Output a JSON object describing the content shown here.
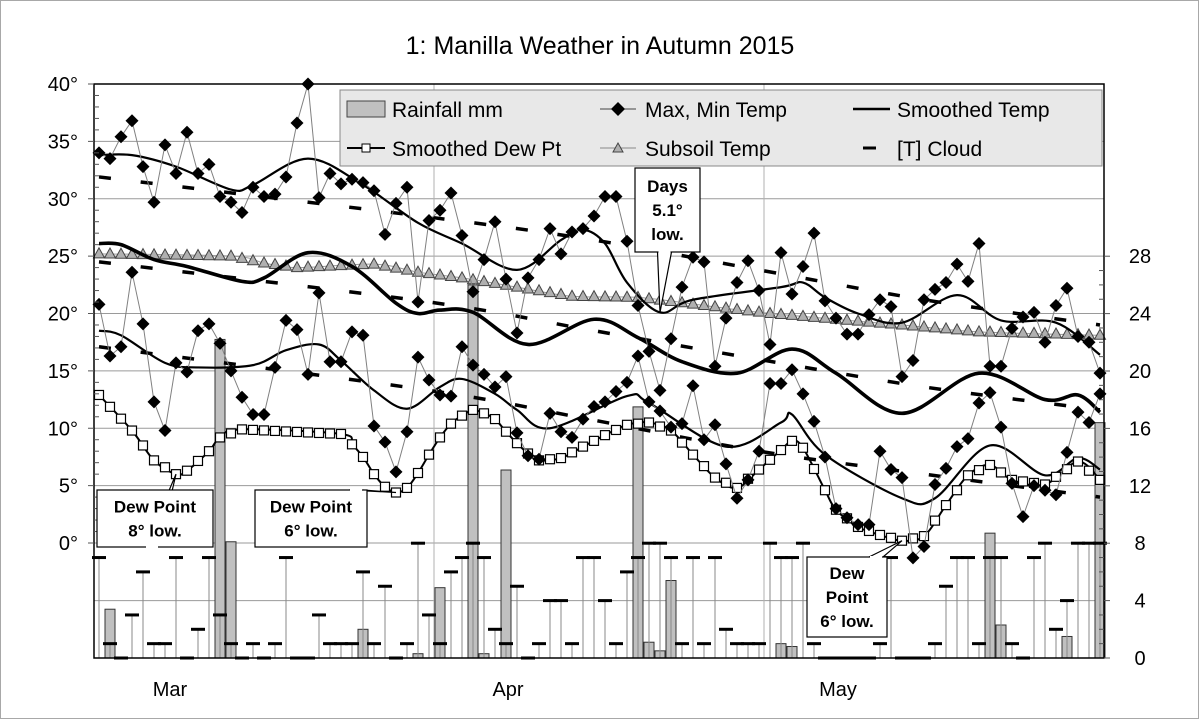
{
  "chart_data": {
    "type": "line",
    "title": "1: Manilla Weather in Autumn 2015",
    "start_date": "2015-03-01",
    "x_tick_labels": [
      "Mar",
      "Apr",
      "May"
    ],
    "left_axis": {
      "range": [
        -10,
        40
      ],
      "tick_labels": [
        "40°",
        "35°",
        "30°",
        "25°",
        "20°",
        "15°",
        "10°",
        "5°",
        "0°"
      ]
    },
    "right_axis": {
      "range": [
        0,
        36
      ],
      "tick_labels": [
        "28",
        "24",
        "20",
        "16",
        "12",
        "8",
        "4",
        "0"
      ]
    },
    "grid": true,
    "legend": {
      "placement": "top",
      "items": [
        "Rainfall mm",
        "Max, Min Temp",
        "Smoothed Temp",
        "Smoothed Dew Pt",
        "Subsoil Temp",
        "[T] Cloud"
      ]
    },
    "colors": {
      "rain_fill": "#c0c0c0",
      "subsoil_fill": "#b0b0b0",
      "lines": "#000000",
      "thin_lines": "#808080",
      "legend_bg": "#e8e8e8"
    },
    "max_temp": [
      34.0,
      33.5,
      35.4,
      36.8,
      32.8,
      29.7,
      34.7,
      32.2,
      35.8,
      32.2,
      33.0,
      30.2,
      29.7,
      28.8,
      31.0,
      30.2,
      30.4,
      31.9,
      36.6,
      40.0,
      30.1,
      32.2,
      31.3,
      31.7,
      31.4,
      30.7,
      26.9,
      29.6,
      31.0,
      21.0,
      28.1,
      29.0,
      30.5,
      26.8,
      21.9,
      24.7,
      28.0,
      23.0,
      18.3,
      23.1,
      24.7,
      27.4,
      25.2,
      27.1,
      27.4,
      28.5,
      30.2,
      30.2,
      26.3,
      20.7,
      16.7,
      13.3,
      17.8,
      22.3,
      24.9,
      24.5,
      15.4,
      19.6,
      22.7,
      24.6,
      22.0,
      17.3,
      25.3,
      21.7,
      24.1,
      27.0,
      21.1,
      19.6,
      18.2,
      18.2,
      19.9,
      21.2,
      20.6,
      14.5,
      15.9,
      21.2,
      22.1,
      22.7,
      24.3,
      22.8,
      26.1,
      15.4,
      15.4,
      18.7,
      19.7,
      20.1,
      17.5,
      20.7,
      22.2,
      18.0,
      17.5,
      14.8
    ],
    "min_temp": [
      20.8,
      16.3,
      17.1,
      23.6,
      19.1,
      12.3,
      9.8,
      15.7,
      14.9,
      18.5,
      19.1,
      17.4,
      15.0,
      12.7,
      11.2,
      11.2,
      15.3,
      19.4,
      18.6,
      14.7,
      21.8,
      15.8,
      15.8,
      18.4,
      18.1,
      10.2,
      8.8,
      6.2,
      9.7,
      16.2,
      14.2,
      12.9,
      12.8,
      17.1,
      15.5,
      14.7,
      13.6,
      14.5,
      9.6,
      7.6,
      7.3,
      11.3,
      9.7,
      9.2,
      10.8,
      11.9,
      12.3,
      13.2,
      14.0,
      16.3,
      12.3,
      11.5,
      10.1,
      10.4,
      13.7,
      9.0,
      10.3,
      6.9,
      3.9,
      5.5,
      8.0,
      13.9,
      13.9,
      15.1,
      13.0,
      10.6,
      7.5,
      3.0,
      2.2,
      1.6,
      1.6,
      8.0,
      6.4,
      5.7,
      -1.3,
      -0.3,
      5.1,
      6.5,
      8.4,
      9.1,
      12.2,
      13.1,
      10.1,
      5.2,
      2.3,
      5.0,
      4.6,
      4.2,
      7.9,
      11.4,
      10.5,
      13.0
    ],
    "rainfall_mm": [
      0,
      3.4,
      0,
      0,
      0,
      0,
      0,
      0,
      0,
      0,
      0,
      22.2,
      8.1,
      0,
      0,
      0,
      0,
      0,
      0,
      0,
      0,
      0,
      0,
      0,
      2.0,
      0,
      0,
      0,
      0,
      0.3,
      0,
      4.9,
      0,
      0,
      26.0,
      0.3,
      0,
      13.1,
      0,
      0,
      0,
      0,
      0,
      0,
      0,
      0,
      0,
      0,
      0,
      17.5,
      1.1,
      0.5,
      5.4,
      0,
      0,
      0,
      0,
      0,
      0,
      0,
      0,
      0,
      1.0,
      0.8,
      0,
      0,
      0,
      0,
      0,
      0,
      0,
      0,
      0,
      0,
      0,
      0,
      0,
      0,
      0,
      0,
      0,
      8.7,
      2.3,
      0,
      0,
      0,
      0,
      0,
      1.5,
      0,
      0,
      16.4
    ],
    "cloud_oktas": [
      7,
      1,
      0,
      3,
      6,
      1,
      1,
      7,
      0,
      2,
      7,
      3,
      1,
      0,
      1,
      0,
      1,
      7,
      0,
      0,
      3,
      1,
      1,
      1,
      6,
      1,
      5,
      0,
      1,
      8,
      3,
      1,
      6,
      7,
      8,
      7,
      2,
      1,
      5,
      0,
      1,
      4,
      4,
      1,
      7,
      7,
      4,
      1,
      6,
      7,
      8,
      8,
      7,
      1,
      7,
      1,
      7,
      2,
      1,
      1,
      1,
      8,
      7,
      7,
      8,
      1,
      0,
      0,
      0,
      0,
      0,
      1,
      7,
      0,
      0,
      0,
      1,
      5,
      7,
      7,
      1,
      7,
      7,
      1,
      0,
      7,
      8,
      2,
      4,
      8,
      8,
      8
    ],
    "smoothed_max": [
      [
        "2015-03-01",
        33.8
      ],
      [
        "2015-03-04",
        33.8
      ],
      [
        "2015-03-08",
        32.8
      ],
      [
        "2015-03-13",
        30.8
      ],
      [
        "2015-03-15",
        31.2
      ],
      [
        "2015-03-20",
        33.5
      ],
      [
        "2015-03-25",
        31.2
      ],
      [
        "2015-03-30",
        27.9
      ],
      [
        "2015-04-03",
        26.1
      ],
      [
        "2015-04-08",
        23.8
      ],
      [
        "2015-04-12",
        26.4
      ],
      [
        "2015-04-14",
        27.3
      ],
      [
        "2015-04-16",
        26.1
      ],
      [
        "2015-04-18",
        22.7
      ],
      [
        "2015-04-21",
        20.1
      ],
      [
        "2015-04-24",
        21.2
      ],
      [
        "2015-05-02",
        22.3
      ],
      [
        "2015-05-04",
        22.7
      ],
      [
        "2015-05-06",
        21.4
      ],
      [
        "2015-05-09",
        20.0
      ],
      [
        "2015-05-13",
        19.2
      ],
      [
        "2015-05-18",
        21.6
      ],
      [
        "2015-05-22",
        19.4
      ],
      [
        "2015-05-27",
        19.2
      ],
      [
        "2015-05-31",
        16.4
      ]
    ],
    "smoothed_mean": [
      [
        "2015-03-01",
        26.1
      ],
      [
        "2015-03-03",
        26.0
      ],
      [
        "2015-03-06",
        24.7
      ],
      [
        "2015-03-09",
        24.1
      ],
      [
        "2015-03-14",
        22.8
      ],
      [
        "2015-03-16",
        23.1
      ],
      [
        "2015-03-20",
        25.3
      ],
      [
        "2015-03-24",
        24.1
      ],
      [
        "2015-03-28",
        20.9
      ],
      [
        "2015-03-30",
        20.0
      ],
      [
        "2015-04-01",
        20.3
      ],
      [
        "2015-04-04",
        20.1
      ],
      [
        "2015-04-09",
        17.3
      ],
      [
        "2015-04-15",
        19.5
      ],
      [
        "2015-04-19",
        17.9
      ],
      [
        "2015-04-23",
        15.8
      ],
      [
        "2015-04-28",
        14.8
      ],
      [
        "2015-05-03",
        16.9
      ],
      [
        "2015-05-07",
        14.8
      ],
      [
        "2015-05-13",
        11.3
      ],
      [
        "2015-05-20",
        14.8
      ],
      [
        "2015-05-26",
        12.5
      ],
      [
        "2015-05-29",
        12.9
      ],
      [
        "2015-05-31",
        11.4
      ]
    ],
    "smoothed_min": [
      [
        "2015-03-01",
        18.5
      ],
      [
        "2015-03-03",
        18.1
      ],
      [
        "2015-03-07",
        15.7
      ],
      [
        "2015-03-10",
        15.3
      ],
      [
        "2015-03-15",
        15.5
      ],
      [
        "2015-03-18",
        16.8
      ],
      [
        "2015-03-21",
        17.3
      ],
      [
        "2015-03-23",
        15.9
      ],
      [
        "2015-03-26",
        13.3
      ],
      [
        "2015-03-29",
        11.7
      ],
      [
        "2015-04-01",
        13.6
      ],
      [
        "2015-04-03",
        14.3
      ],
      [
        "2015-04-06",
        13.0
      ],
      [
        "2015-04-08",
        11.6
      ],
      [
        "2015-04-11",
        10.0
      ],
      [
        "2015-04-18",
        12.8
      ],
      [
        "2015-04-20",
        12.2
      ],
      [
        "2015-04-27",
        8.4
      ],
      [
        "2015-05-02",
        10.5
      ],
      [
        "2015-05-03",
        11.2
      ],
      [
        "2015-05-06",
        7.7
      ],
      [
        "2015-05-13",
        3.9
      ],
      [
        "2015-05-16",
        3.9
      ],
      [
        "2015-05-21",
        8.5
      ],
      [
        "2015-05-26",
        5.9
      ],
      [
        "2015-05-29",
        7.4
      ],
      [
        "2015-05-31",
        6.4
      ]
    ],
    "normal_max": [
      [
        "2015-03-01",
        31.9
      ],
      [
        "2015-03-31",
        28.4
      ],
      [
        "2015-04-15",
        26.4
      ],
      [
        "2015-04-30",
        23.8
      ],
      [
        "2015-05-15",
        21.2
      ],
      [
        "2015-05-31",
        19.0
      ]
    ],
    "normal_mean": [
      [
        "2015-03-01",
        24.5
      ],
      [
        "2015-03-31",
        21.0
      ],
      [
        "2015-04-15",
        18.5
      ],
      [
        "2015-04-30",
        16.0
      ],
      [
        "2015-05-15",
        13.6
      ],
      [
        "2015-05-31",
        11.6
      ]
    ],
    "normal_min": [
      [
        "2015-03-01",
        17.1
      ],
      [
        "2015-03-31",
        13.3
      ],
      [
        "2015-04-15",
        10.7
      ],
      [
        "2015-04-30",
        8.0
      ],
      [
        "2015-05-15",
        6.0
      ],
      [
        "2015-05-31",
        4.0
      ]
    ],
    "subsoil_temp": [
      [
        "2015-03-01",
        25.2
      ],
      [
        "2015-03-13",
        25.0
      ],
      [
        "2015-03-16",
        24.4
      ],
      [
        "2015-03-19",
        24.0
      ],
      [
        "2015-03-26",
        24.3
      ],
      [
        "2015-03-30",
        23.6
      ],
      [
        "2015-04-03",
        23.1
      ],
      [
        "2015-04-08",
        22.3
      ],
      [
        "2015-04-13",
        21.5
      ],
      [
        "2015-04-19",
        21.4
      ],
      [
        "2015-04-25",
        20.7
      ],
      [
        "2015-05-01",
        20.0
      ],
      [
        "2015-05-13",
        19.0
      ],
      [
        "2015-05-20",
        18.4
      ],
      [
        "2015-05-31",
        18.1
      ]
    ],
    "smoothed_dew_pt": [
      [
        "2015-03-01",
        12.9
      ],
      [
        "2015-03-04",
        9.8
      ],
      [
        "2015-03-06",
        7.2
      ],
      [
        "2015-03-08",
        6.0
      ],
      [
        "2015-03-09",
        6.3
      ],
      [
        "2015-03-11",
        8.0
      ],
      [
        "2015-03-12",
        9.2
      ],
      [
        "2015-03-14",
        9.9
      ],
      [
        "2015-03-23",
        9.5
      ],
      [
        "2015-03-24",
        8.6
      ],
      [
        "2015-03-25",
        7.5
      ],
      [
        "2015-03-26",
        6.0
      ],
      [
        "2015-03-27",
        4.9
      ],
      [
        "2015-03-28",
        4.4
      ],
      [
        "2015-03-29",
        4.8
      ],
      [
        "2015-03-30",
        6.1
      ],
      [
        "2015-03-31",
        7.7
      ],
      [
        "2015-04-01",
        9.2
      ],
      [
        "2015-04-02",
        10.4
      ],
      [
        "2015-04-03",
        11.1
      ],
      [
        "2015-04-04",
        11.6
      ],
      [
        "2015-04-05",
        11.3
      ],
      [
        "2015-04-06",
        10.8
      ],
      [
        "2015-04-07",
        9.7
      ],
      [
        "2015-04-08",
        8.7
      ],
      [
        "2015-04-09",
        7.8
      ],
      [
        "2015-04-10",
        7.2
      ],
      [
        "2015-04-12",
        7.4
      ],
      [
        "2015-04-14",
        8.4
      ],
      [
        "2015-04-16",
        9.4
      ],
      [
        "2015-04-18",
        10.3
      ],
      [
        "2015-04-20",
        10.5
      ],
      [
        "2015-04-22",
        9.8
      ],
      [
        "2015-04-24",
        7.7
      ],
      [
        "2015-04-26",
        5.7
      ],
      [
        "2015-04-28",
        4.8
      ],
      [
        "2015-04-30",
        6.4
      ],
      [
        "2015-05-02",
        8.1
      ],
      [
        "2015-05-03",
        8.9
      ],
      [
        "2015-05-04",
        8.3
      ],
      [
        "2015-05-06",
        4.6
      ],
      [
        "2015-05-07",
        2.9
      ],
      [
        "2015-05-09",
        1.4
      ],
      [
        "2015-05-11",
        0.7
      ],
      [
        "2015-05-13",
        0.2
      ],
      [
        "2015-05-15",
        0.6
      ],
      [
        "2015-05-17",
        3.3
      ],
      [
        "2015-05-19",
        5.9
      ],
      [
        "2015-05-21",
        6.8
      ],
      [
        "2015-05-23",
        5.5
      ],
      [
        "2015-05-26",
        5.1
      ],
      [
        "2015-05-29",
        7.1
      ],
      [
        "2015-05-31",
        5.5
      ]
    ],
    "annotations": [
      {
        "lines": [
          "Dew Point",
          "8° low."
        ],
        "date": "2015-03-08",
        "value": 6.0
      },
      {
        "lines": [
          "Dew Point",
          "6° low."
        ],
        "date": "2015-03-28",
        "value": 4.4
      },
      {
        "lines": [
          "Days",
          "5.1°",
          "low."
        ],
        "date": "2015-04-21",
        "value": 20.1
      },
      {
        "lines": [
          "Dew",
          "Point",
          "6° low."
        ],
        "date": "2015-05-13",
        "value": 0.2
      }
    ]
  }
}
